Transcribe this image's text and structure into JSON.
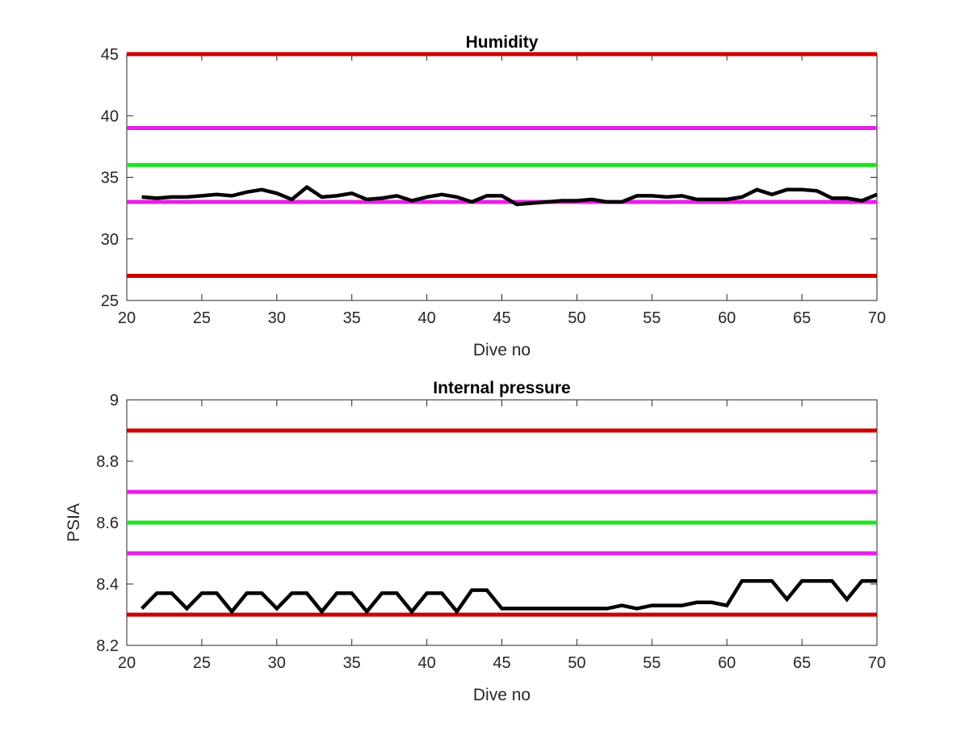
{
  "chart_data": [
    {
      "type": "line",
      "title": "Humidity",
      "xlabel": "Dive no",
      "ylabel": "",
      "xlim": [
        20,
        70
      ],
      "ylim": [
        25,
        45
      ],
      "xticks": [
        20,
        25,
        30,
        35,
        40,
        45,
        50,
        55,
        60,
        65,
        70
      ],
      "yticks": [
        25,
        30,
        35,
        40,
        45
      ],
      "grid": false,
      "hlines": [
        {
          "y": 45,
          "color": "#cc0000"
        },
        {
          "y": 39,
          "color": "#e81ee8"
        },
        {
          "y": 36,
          "color": "#22e022"
        },
        {
          "y": 33,
          "color": "#e81ee8"
        },
        {
          "y": 27,
          "color": "#cc0000"
        }
      ],
      "series": [
        {
          "color": "#000000",
          "x": [
            21,
            22,
            23,
            24,
            25,
            26,
            27,
            28,
            29,
            30,
            31,
            32,
            33,
            34,
            35,
            36,
            37,
            38,
            39,
            40,
            41,
            42,
            43,
            44,
            45,
            46,
            47,
            48,
            49,
            50,
            51,
            52,
            53,
            54,
            55,
            56,
            57,
            58,
            59,
            60,
            61,
            62,
            63,
            64,
            65,
            66,
            67,
            68,
            69,
            70
          ],
          "values": [
            33.4,
            33.3,
            33.4,
            33.4,
            33.5,
            33.6,
            33.5,
            33.8,
            34.0,
            33.7,
            33.2,
            34.2,
            33.4,
            33.5,
            33.7,
            33.2,
            33.3,
            33.5,
            33.1,
            33.4,
            33.6,
            33.4,
            33.0,
            33.5,
            33.5,
            32.8,
            32.9,
            33.0,
            33.1,
            33.1,
            33.2,
            33.0,
            33.0,
            33.5,
            33.5,
            33.4,
            33.5,
            33.2,
            33.2,
            33.2,
            33.4,
            34.0,
            33.6,
            34.0,
            34.0,
            33.9,
            33.3,
            33.3,
            33.1,
            33.6
          ]
        }
      ]
    },
    {
      "type": "line",
      "title": "Internal pressure",
      "xlabel": "Dive no",
      "ylabel": "PSIA",
      "xlim": [
        20,
        70
      ],
      "ylim": [
        8.2,
        9
      ],
      "xticks": [
        20,
        25,
        30,
        35,
        40,
        45,
        50,
        55,
        60,
        65,
        70
      ],
      "yticks": [
        8.2,
        8.4,
        8.6,
        8.8,
        9
      ],
      "grid": false,
      "hlines": [
        {
          "y": 8.9,
          "color": "#cc0000"
        },
        {
          "y": 8.7,
          "color": "#e81ee8"
        },
        {
          "y": 8.6,
          "color": "#22e022"
        },
        {
          "y": 8.5,
          "color": "#e81ee8"
        },
        {
          "y": 8.3,
          "color": "#cc0000"
        }
      ],
      "series": [
        {
          "color": "#000000",
          "x": [
            21,
            22,
            23,
            24,
            25,
            26,
            27,
            28,
            29,
            30,
            31,
            32,
            33,
            34,
            35,
            36,
            37,
            38,
            39,
            40,
            41,
            42,
            43,
            44,
            45,
            46,
            47,
            48,
            49,
            50,
            51,
            52,
            53,
            54,
            55,
            56,
            57,
            58,
            59,
            60,
            61,
            62,
            63,
            64,
            65,
            66,
            67,
            68,
            69,
            70
          ],
          "values": [
            8.32,
            8.37,
            8.37,
            8.32,
            8.37,
            8.37,
            8.31,
            8.37,
            8.37,
            8.32,
            8.37,
            8.37,
            8.31,
            8.37,
            8.37,
            8.31,
            8.37,
            8.37,
            8.31,
            8.37,
            8.37,
            8.31,
            8.38,
            8.38,
            8.32,
            8.32,
            8.32,
            8.32,
            8.32,
            8.32,
            8.32,
            8.32,
            8.33,
            8.32,
            8.33,
            8.33,
            8.33,
            8.34,
            8.34,
            8.33,
            8.41,
            8.41,
            8.41,
            8.35,
            8.41,
            8.41,
            8.41,
            8.35,
            8.41,
            8.41
          ]
        }
      ]
    }
  ]
}
